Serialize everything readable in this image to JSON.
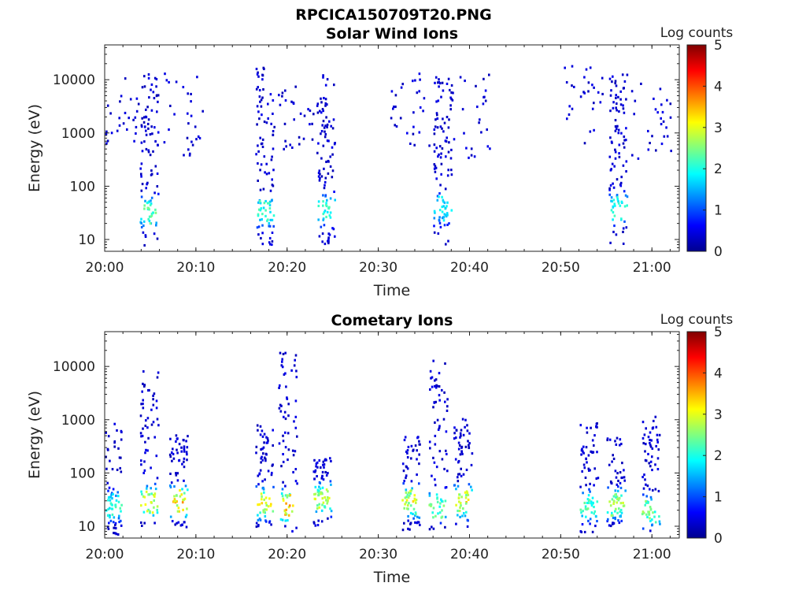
{
  "figure": {
    "title": "RPCICA150709T20.PNG"
  },
  "chart_data": [
    {
      "type": "heatmap",
      "title": "Solar Wind Ions",
      "xlabel": "Time",
      "ylabel": "Energy (eV)",
      "xlim": [
        "20:00",
        "21:03"
      ],
      "ylim": [
        6,
        45000
      ],
      "yscale": "log",
      "xticks": [
        "20:00",
        "20:10",
        "20:20",
        "20:30",
        "20:40",
        "20:50",
        "21:00"
      ],
      "yticks": [
        {
          "value": 10,
          "label": "10"
        },
        {
          "value": 100,
          "label": "100"
        },
        {
          "value": 1000,
          "label": "1000"
        },
        {
          "value": 10000,
          "label": "10000"
        }
      ],
      "colorbar": {
        "label": "Log counts",
        "min": 0,
        "max": 5,
        "ticks": [
          "0",
          "1",
          "2",
          "3",
          "4",
          "5"
        ],
        "colormap": "jet"
      },
      "grid": false,
      "bursts": [
        {
          "time_min": 1.5,
          "emin": 500,
          "emax": 12000,
          "sparse": true
        },
        {
          "time_min": 4.8,
          "emin": 8,
          "emax": 14000,
          "peak_energy": 35,
          "peak_log_counts": 2.5
        },
        {
          "time_min": 8.5,
          "emin": 400,
          "emax": 14000,
          "sparse": true
        },
        {
          "time_min": 17.5,
          "emin": 8,
          "emax": 20000,
          "peak_energy": 35,
          "peak_log_counts": 2.3
        },
        {
          "time_min": 21.0,
          "emin": 500,
          "emax": 10000,
          "sparse": true
        },
        {
          "time_min": 24.2,
          "emin": 8,
          "emax": 13000,
          "peak_energy": 38,
          "peak_log_counts": 2.4
        },
        {
          "time_min": 33.5,
          "emin": 500,
          "emax": 14000,
          "sparse": true
        },
        {
          "time_min": 37.0,
          "emin": 8,
          "emax": 15000,
          "peak_energy": 40,
          "peak_log_counts": 2.0
        },
        {
          "time_min": 40.0,
          "emin": 300,
          "emax": 13000,
          "sparse": true
        },
        {
          "time_min": 52.5,
          "emin": 500,
          "emax": 20000,
          "sparse": true
        },
        {
          "time_min": 56.2,
          "emin": 8,
          "emax": 15000,
          "peak_energy": 40,
          "peak_log_counts": 2.2
        },
        {
          "time_min": 59.8,
          "emin": 300,
          "emax": 9000,
          "sparse": true
        }
      ]
    },
    {
      "type": "heatmap",
      "title": "Cometary Ions",
      "xlabel": "Time",
      "ylabel": "Energy (eV)",
      "xlim": [
        "20:00",
        "21:03"
      ],
      "ylim": [
        6,
        45000
      ],
      "yscale": "log",
      "xticks": [
        "20:00",
        "20:10",
        "20:20",
        "20:30",
        "20:40",
        "20:50",
        "21:00"
      ],
      "yticks": [
        {
          "value": 10,
          "label": "10"
        },
        {
          "value": 100,
          "label": "100"
        },
        {
          "value": 1000,
          "label": "1000"
        },
        {
          "value": 10000,
          "label": "10000"
        }
      ],
      "colorbar": {
        "label": "Log counts",
        "min": 0,
        "max": 5,
        "ticks": [
          "0",
          "1",
          "2",
          "3",
          "4",
          "5"
        ],
        "colormap": "jet"
      },
      "grid": false,
      "bursts": [
        {
          "time_min": 0.8,
          "emin": 7,
          "emax": 1000,
          "peak_energy": 25,
          "peak_log_counts": 2.2
        },
        {
          "time_min": 4.8,
          "emin": 10,
          "emax": 11000,
          "peak_energy": 30,
          "peak_log_counts": 3.2
        },
        {
          "time_min": 8.0,
          "emin": 10,
          "emax": 600,
          "peak_energy": 30,
          "peak_log_counts": 3.5
        },
        {
          "time_min": 17.5,
          "emin": 10,
          "emax": 900,
          "peak_energy": 28,
          "peak_log_counts": 3.3
        },
        {
          "time_min": 20.0,
          "emin": 8,
          "emax": 20000,
          "peak_energy": 25,
          "peak_log_counts": 3.8
        },
        {
          "time_min": 23.8,
          "emin": 10,
          "emax": 200,
          "peak_energy": 35,
          "peak_log_counts": 3.0
        },
        {
          "time_min": 33.5,
          "emin": 8,
          "emax": 500,
          "peak_energy": 30,
          "peak_log_counts": 3.2
        },
        {
          "time_min": 36.5,
          "emin": 8,
          "emax": 14000,
          "peak_energy": 25,
          "peak_log_counts": 2.5
        },
        {
          "time_min": 39.2,
          "emin": 10,
          "emax": 1100,
          "peak_energy": 30,
          "peak_log_counts": 3.3
        },
        {
          "time_min": 53.0,
          "emin": 8,
          "emax": 1000,
          "peak_energy": 25,
          "peak_log_counts": 2.5
        },
        {
          "time_min": 56.0,
          "emin": 10,
          "emax": 500,
          "peak_energy": 28,
          "peak_log_counts": 2.8
        },
        {
          "time_min": 59.8,
          "emin": 8,
          "emax": 1200,
          "peak_energy": 20,
          "peak_log_counts": 2.6
        }
      ]
    }
  ]
}
